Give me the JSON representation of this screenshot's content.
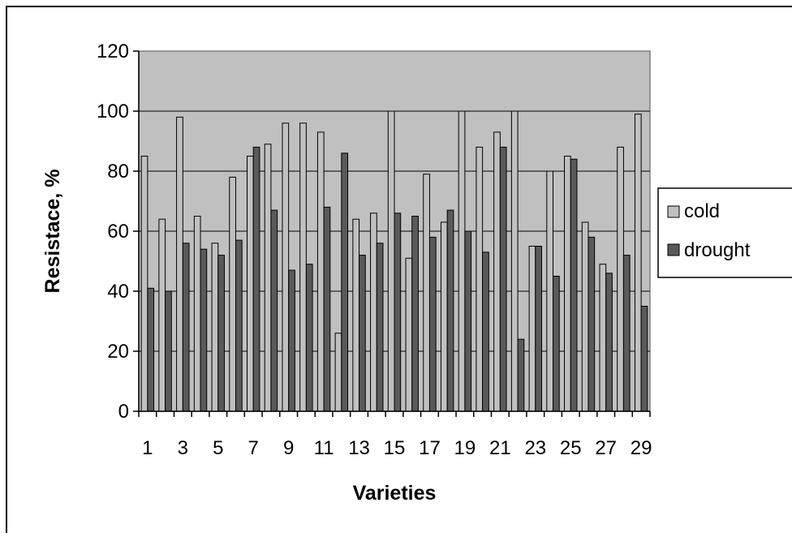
{
  "chart_data": {
    "type": "bar",
    "title": "",
    "xlabel": "Varieties",
    "ylabel": "Resistace, %",
    "ylim": [
      0,
      120
    ],
    "yticks": [
      0,
      20,
      40,
      60,
      80,
      100,
      120
    ],
    "categories": [
      1,
      2,
      3,
      4,
      5,
      6,
      7,
      8,
      9,
      10,
      11,
      12,
      13,
      14,
      15,
      16,
      17,
      18,
      19,
      20,
      21,
      22,
      23,
      24,
      25,
      26,
      27,
      28,
      29
    ],
    "xtick_labels_shown": [
      "1",
      "3",
      "5",
      "7",
      "9",
      "11",
      "13",
      "15",
      "17",
      "19",
      "21",
      "23",
      "25",
      "27",
      "29"
    ],
    "series": [
      {
        "name": "cold",
        "values": [
          85,
          64,
          98,
          65,
          56,
          78,
          85,
          89,
          96,
          96,
          93,
          26,
          64,
          66,
          100,
          51,
          79,
          63,
          100,
          88,
          93,
          100,
          55,
          80,
          85,
          63,
          49,
          88,
          99
        ]
      },
      {
        "name": "drought",
        "values": [
          41,
          40,
          56,
          54,
          52,
          57,
          88,
          67,
          47,
          49,
          68,
          86,
          52,
          56,
          66,
          65,
          58,
          67,
          60,
          53,
          88,
          24,
          55,
          45,
          84,
          58,
          46,
          52,
          35
        ]
      }
    ],
    "grid": true,
    "legend_position": "right",
    "colors": {
      "plot_background": "#c0c0c0",
      "cold": "#c0c0c0",
      "drought": "#5a5a5a",
      "bar_edge": "#000000",
      "frame": "#000000"
    }
  }
}
